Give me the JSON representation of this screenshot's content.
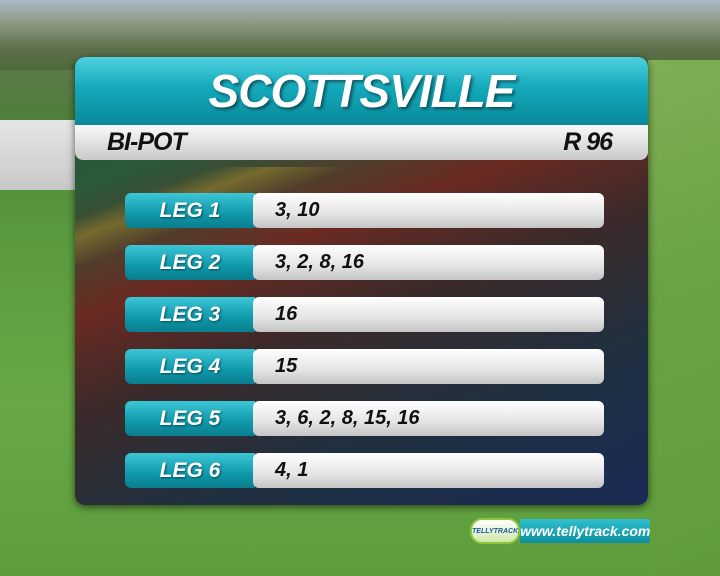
{
  "header": {
    "title": "SCOTTSVILLE",
    "pool": "BI-POT",
    "amount": "R 96"
  },
  "legs": [
    {
      "label": "LEG 1",
      "runners": "3, 10"
    },
    {
      "label": "LEG 2",
      "runners": "3, 2, 8, 16"
    },
    {
      "label": "LEG 3",
      "runners": "16"
    },
    {
      "label": "LEG 4",
      "runners": "15"
    },
    {
      "label": "LEG 5",
      "runners": "3, 6, 2, 8, 15, 16"
    },
    {
      "label": "LEG 6",
      "runners": "4, 1"
    }
  ],
  "branding": {
    "logo_text": "TELLYTRACK",
    "url": "www.tellytrack.com"
  },
  "colors": {
    "accent": "#13a9bb",
    "bar": "#e4e4e4"
  }
}
